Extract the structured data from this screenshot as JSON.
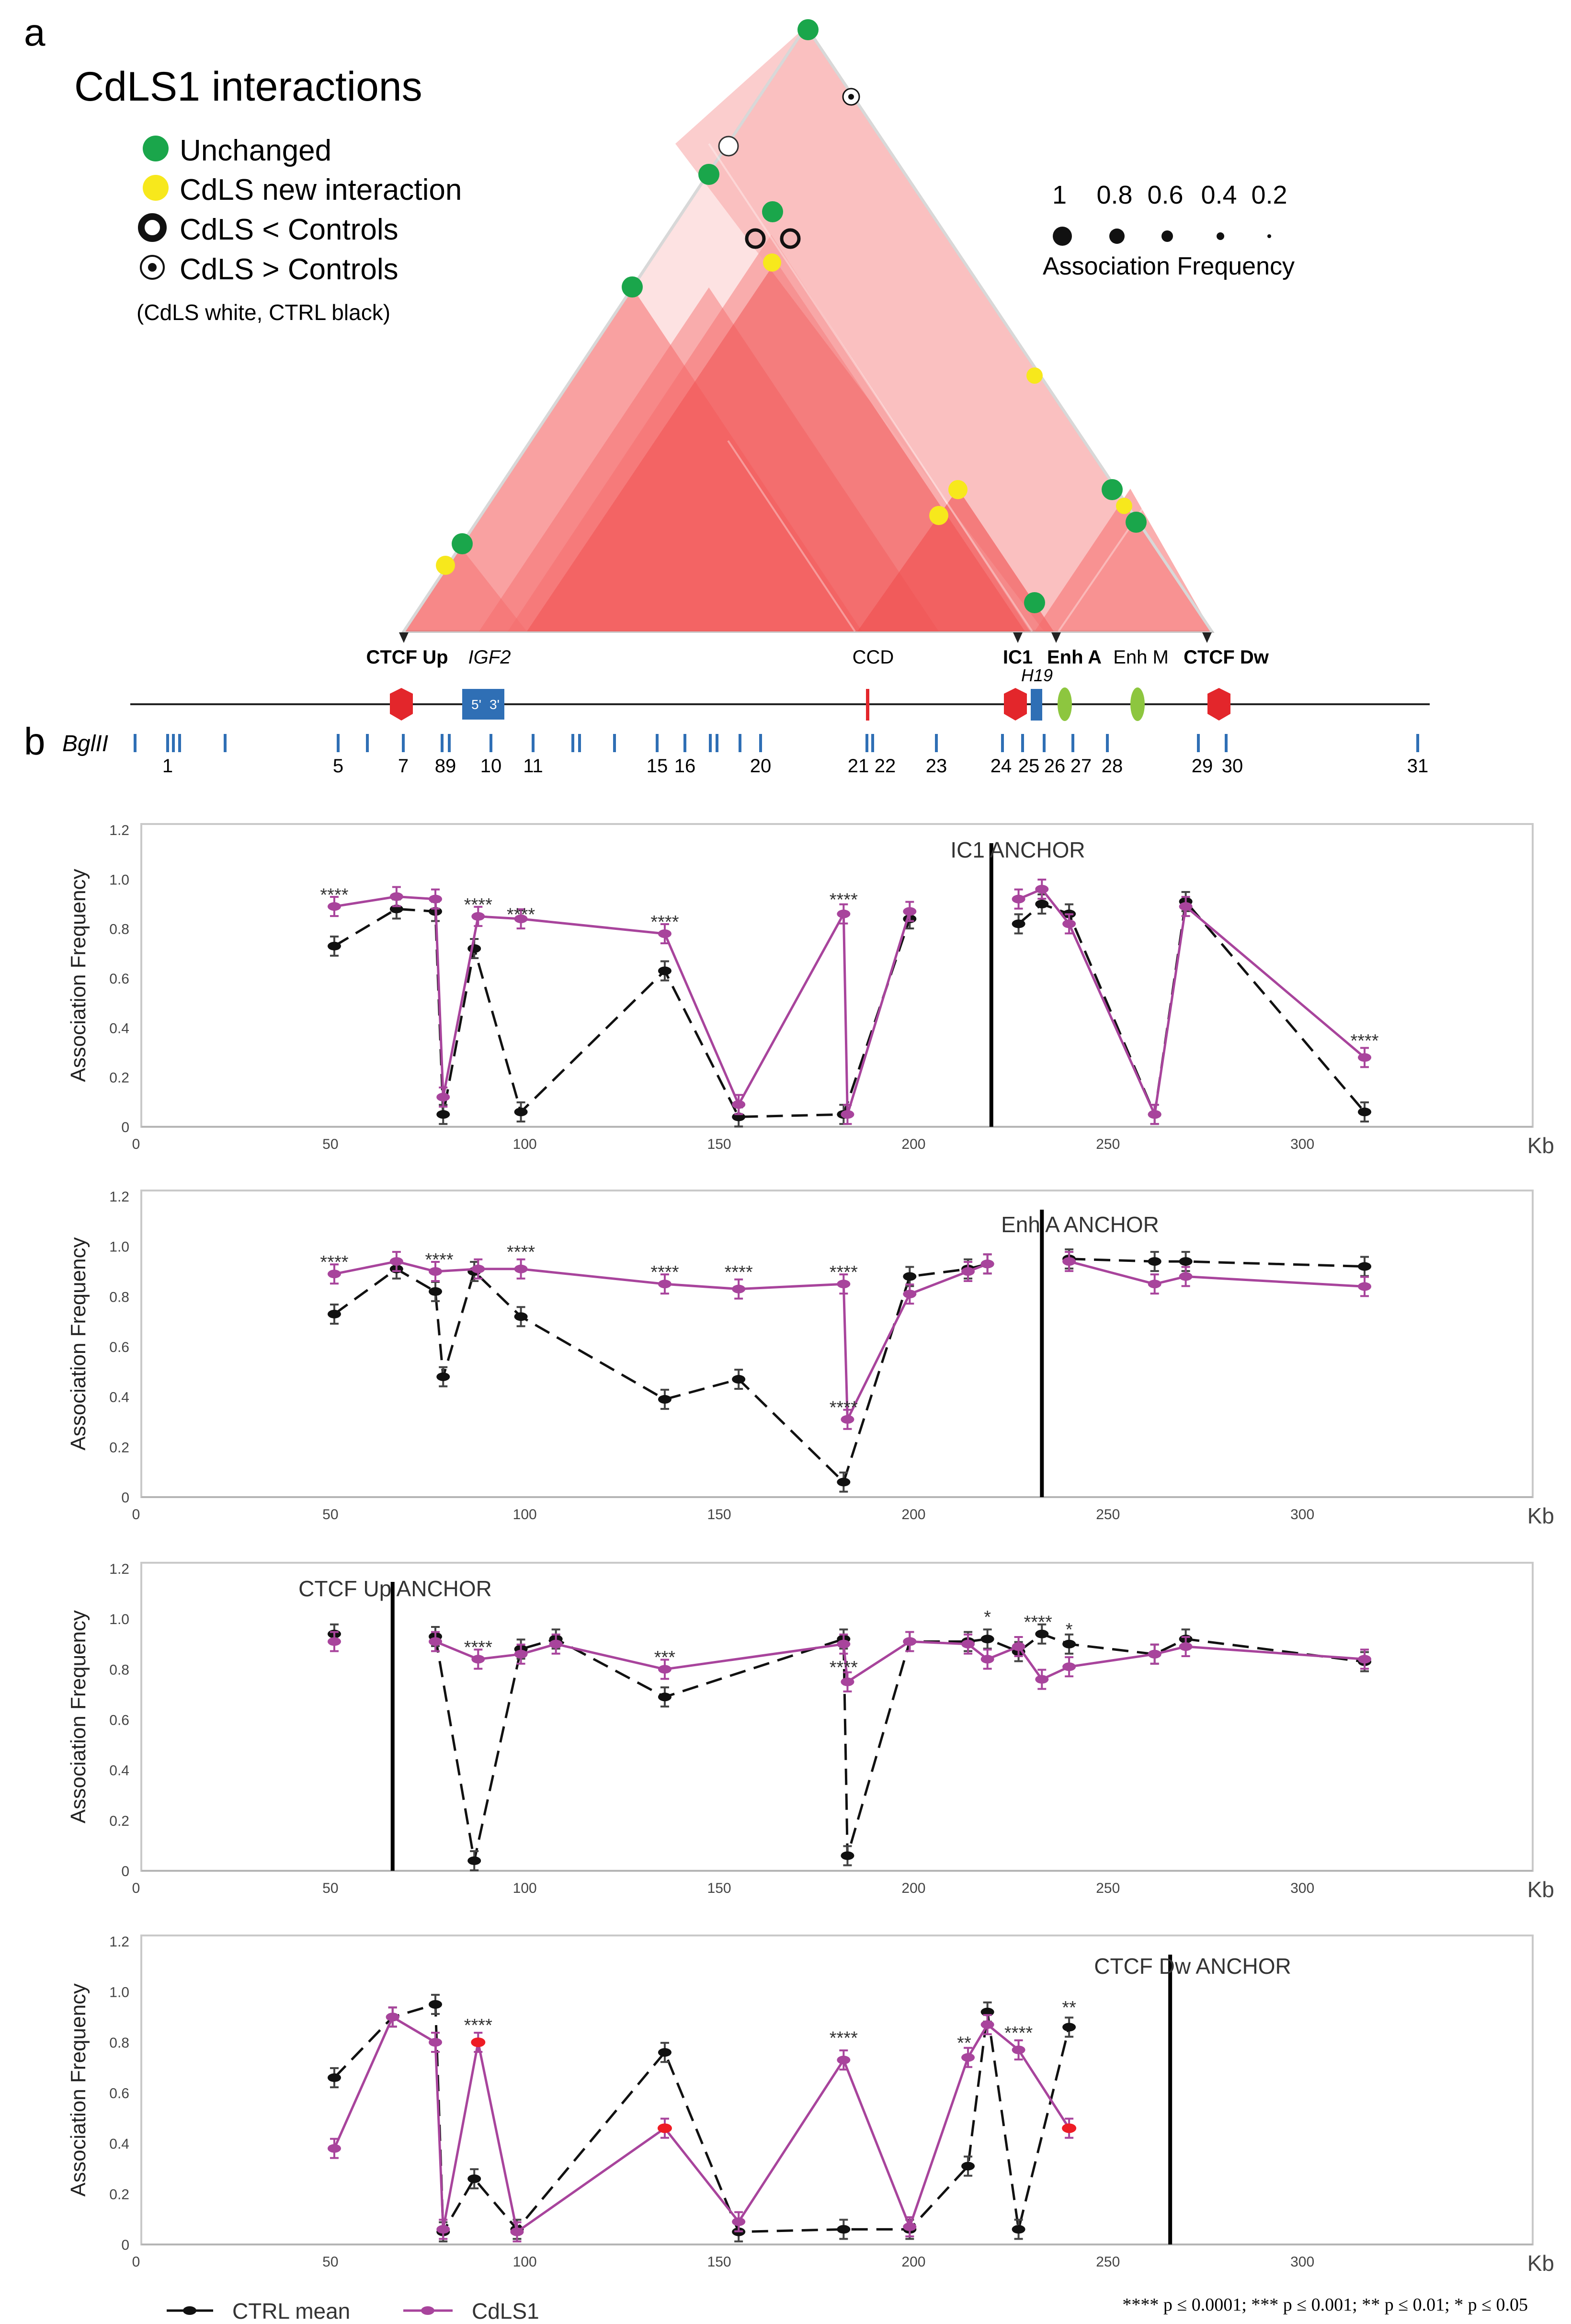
{
  "panel_a": {
    "label": "a",
    "title": "CdLS1 interactions",
    "legend": [
      {
        "kind": "green",
        "label": "Unchanged"
      },
      {
        "kind": "yellow",
        "label": "CdLS new interaction"
      },
      {
        "kind": "ring",
        "label": "CdLS < Controls"
      },
      {
        "kind": "dot-ring",
        "label": "CdLS > Controls"
      }
    ],
    "legend_note": "(CdLS white, CTRL black)",
    "size_scale": {
      "values": [
        "1",
        "0.8",
        "0.6",
        "0.4",
        "0.2"
      ],
      "label": "Association Frequency"
    },
    "colors": {
      "green": "#1aa64b",
      "yellow": "#f7e81c",
      "triangle": "#f04e4e"
    }
  },
  "panel_b": {
    "label": "b",
    "enzyme_label": "BglII",
    "feature_labels": {
      "ctcf_up": "CTCF Up",
      "igf2": "IGF2",
      "ccd": "CCD",
      "ic1": "IC1",
      "enh_a": "Enh A",
      "enh_m": "Enh M",
      "ctcf_dw": "CTCF Dw",
      "h19": "H19",
      "igf2_5": "5'",
      "igf2_3": "3'"
    },
    "fragment_numbers": [
      "1",
      "5",
      "7",
      "89",
      "10",
      "11",
      "15",
      "16",
      "20",
      "21",
      "22",
      "23",
      "24",
      "25",
      "26",
      "27",
      "28",
      "29",
      "30",
      "31"
    ]
  },
  "chart_data": [
    {
      "type": "line",
      "title": "IC1 ANCHOR",
      "anchor_kb": 220,
      "xlabel": "Kb",
      "ylabel": "Association Frequency",
      "xlim": [
        0,
        350
      ],
      "ylim": [
        0,
        1.2
      ],
      "xticks": [
        "0",
        "50",
        "100",
        "150",
        "200",
        "250",
        "300"
      ],
      "yticks": [
        "0",
        "0.2",
        "0.4",
        "0.6",
        "0.8",
        "1.0",
        "1.2"
      ],
      "series": [
        {
          "name": "CTRL mean",
          "style": "dashed",
          "color": "#111111",
          "segments": [
            [
              [
                51,
                0.73
              ],
              [
                67,
                0.88
              ],
              [
                77,
                0.87
              ],
              [
                79,
                0.05
              ],
              [
                87,
                0.72
              ],
              [
                99,
                0.06
              ],
              [
                136,
                0.63
              ],
              [
                155,
                0.04
              ],
              [
                182,
                0.05
              ],
              [
                199,
                0.84
              ]
            ],
            [
              [
                227,
                0.82
              ],
              [
                233,
                0.9
              ],
              [
                240,
                0.86
              ],
              [
                262,
                0.05
              ],
              [
                270,
                0.91
              ],
              [
                316,
                0.06
              ]
            ]
          ]
        },
        {
          "name": "CdLS1",
          "style": "solid",
          "color": "#a8449c",
          "segments": [
            [
              [
                51,
                0.89
              ],
              [
                67,
                0.93
              ],
              [
                77,
                0.92
              ],
              [
                79,
                0.12
              ],
              [
                88,
                0.85
              ],
              [
                99,
                0.84
              ],
              [
                136,
                0.78
              ],
              [
                155,
                0.09
              ],
              [
                182,
                0.86
              ],
              [
                183,
                0.05
              ],
              [
                199,
                0.87
              ]
            ],
            [
              [
                227,
                0.92
              ],
              [
                233,
                0.96
              ],
              [
                240,
                0.82
              ],
              [
                262,
                0.05
              ],
              [
                270,
                0.89
              ],
              [
                316,
                0.28
              ]
            ]
          ]
        }
      ],
      "annotations": [
        {
          "text": "****",
          "x": 51,
          "y": 0.94
        },
        {
          "text": "****",
          "x": 88,
          "y": 0.9
        },
        {
          "text": "****",
          "x": 99,
          "y": 0.86
        },
        {
          "text": "****",
          "x": 136,
          "y": 0.83
        },
        {
          "text": "****",
          "x": 182,
          "y": 0.92
        },
        {
          "text": "****",
          "x": 316,
          "y": 0.35
        }
      ]
    },
    {
      "type": "line",
      "title": "Enh A ANCHOR",
      "anchor_kb": 233,
      "xlabel": "Kb",
      "ylabel": "Association Frequency",
      "xlim": [
        0,
        350
      ],
      "ylim": [
        0,
        1.2
      ],
      "xticks": [
        "0",
        "50",
        "100",
        "150",
        "200",
        "250",
        "300"
      ],
      "yticks": [
        "0",
        "0.2",
        "0.4",
        "0.6",
        "0.8",
        "1.0",
        "1.2"
      ],
      "series": [
        {
          "name": "CTRL mean",
          "style": "dashed",
          "color": "#111111",
          "segments": [
            [
              [
                51,
                0.73
              ],
              [
                67,
                0.91
              ],
              [
                77,
                0.82
              ],
              [
                79,
                0.48
              ],
              [
                87,
                0.9
              ],
              [
                99,
                0.72
              ],
              [
                136,
                0.39
              ],
              [
                155,
                0.47
              ],
              [
                182,
                0.06
              ],
              [
                199,
                0.88
              ],
              [
                214,
                0.91
              ],
              [
                219,
                0.93
              ]
            ],
            [
              [
                240,
                0.95
              ],
              [
                262,
                0.94
              ],
              [
                270,
                0.94
              ],
              [
                316,
                0.92
              ]
            ]
          ]
        },
        {
          "name": "CdLS1",
          "style": "solid",
          "color": "#a8449c",
          "segments": [
            [
              [
                51,
                0.89
              ],
              [
                67,
                0.94
              ],
              [
                77,
                0.9
              ],
              [
                88,
                0.91
              ],
              [
                99,
                0.91
              ],
              [
                136,
                0.85
              ],
              [
                155,
                0.83
              ],
              [
                182,
                0.85
              ],
              [
                183,
                0.31
              ],
              [
                199,
                0.81
              ],
              [
                214,
                0.9
              ],
              [
                219,
                0.93
              ]
            ],
            [
              [
                240,
                0.94
              ],
              [
                262,
                0.85
              ],
              [
                270,
                0.88
              ],
              [
                316,
                0.84
              ]
            ]
          ]
        }
      ],
      "annotations": [
        {
          "text": "****",
          "x": 51,
          "y": 0.94
        },
        {
          "text": "****",
          "x": 78,
          "y": 0.95
        },
        {
          "text": "****",
          "x": 99,
          "y": 0.98
        },
        {
          "text": "****",
          "x": 136,
          "y": 0.9
        },
        {
          "text": "****",
          "x": 155,
          "y": 0.9
        },
        {
          "text": "****",
          "x": 182,
          "y": 0.9
        },
        {
          "text": "****",
          "x": 182,
          "y": 0.36
        }
      ]
    },
    {
      "type": "line",
      "title": "CTCF Up ANCHOR",
      "anchor_kb": 66,
      "xlabel": "Kb",
      "ylabel": "Association Frequency",
      "xlim": [
        0,
        350
      ],
      "ylim": [
        0,
        1.2
      ],
      "xticks": [
        "0",
        "50",
        "100",
        "150",
        "200",
        "250",
        "300"
      ],
      "yticks": [
        "0",
        "0.2",
        "0.4",
        "0.6",
        "0.8",
        "1.0",
        "1.2"
      ],
      "series": [
        {
          "name": "CTRL mean",
          "style": "dashed",
          "color": "#111111",
          "segments": [
            [
              [
                51,
                0.94
              ]
            ],
            [
              [
                77,
                0.93
              ],
              [
                87,
                0.04
              ],
              [
                99,
                0.88
              ],
              [
                108,
                0.92
              ],
              [
                136,
                0.69
              ],
              [
                182,
                0.92
              ],
              [
                183,
                0.06
              ],
              [
                199,
                0.91
              ],
              [
                214,
                0.91
              ],
              [
                219,
                0.92
              ],
              [
                227,
                0.87
              ],
              [
                233,
                0.94
              ],
              [
                240,
                0.9
              ],
              [
                262,
                0.86
              ],
              [
                270,
                0.92
              ],
              [
                316,
                0.83
              ]
            ]
          ]
        },
        {
          "name": "CdLS1",
          "style": "solid",
          "color": "#a8449c",
          "segments": [
            [
              [
                51,
                0.91
              ]
            ],
            [
              [
                77,
                0.91
              ],
              [
                88,
                0.84
              ],
              [
                99,
                0.86
              ],
              [
                108,
                0.9
              ],
              [
                136,
                0.8
              ],
              [
                182,
                0.9
              ],
              [
                183,
                0.75
              ],
              [
                199,
                0.91
              ],
              [
                214,
                0.9
              ],
              [
                219,
                0.84
              ],
              [
                227,
                0.89
              ],
              [
                233,
                0.76
              ],
              [
                240,
                0.81
              ],
              [
                262,
                0.86
              ],
              [
                270,
                0.89
              ],
              [
                316,
                0.84
              ]
            ]
          ]
        }
      ],
      "annotations": [
        {
          "text": "****",
          "x": 88,
          "y": 0.89
        },
        {
          "text": "***",
          "x": 136,
          "y": 0.85
        },
        {
          "text": "****",
          "x": 182,
          "y": 0.81
        },
        {
          "text": "*",
          "x": 219,
          "y": 1.01
        },
        {
          "text": "****",
          "x": 232,
          "y": 0.99
        },
        {
          "text": "*",
          "x": 240,
          "y": 0.96
        }
      ]
    },
    {
      "type": "line",
      "title": "CTCF Dw ANCHOR",
      "anchor_kb": 266,
      "xlabel": "Kb",
      "ylabel": "Association Frequency",
      "xlim": [
        0,
        350
      ],
      "ylim": [
        0,
        1.2
      ],
      "xticks": [
        "0",
        "50",
        "100",
        "150",
        "200",
        "250",
        "300"
      ],
      "yticks": [
        "0",
        "0.2",
        "0.4",
        "0.6",
        "0.8",
        "1.0",
        "1.2"
      ],
      "series": [
        {
          "name": "CTRL mean",
          "style": "dashed",
          "color": "#111111",
          "segments": [
            [
              [
                51,
                0.66
              ],
              [
                66,
                0.9
              ],
              [
                77,
                0.95
              ],
              [
                79,
                0.05
              ],
              [
                87,
                0.26
              ],
              [
                98,
                0.06
              ],
              [
                136,
                0.76
              ],
              [
                155,
                0.05
              ],
              [
                182,
                0.06
              ],
              [
                199,
                0.06
              ],
              [
                214,
                0.31
              ],
              [
                219,
                0.92
              ],
              [
                227,
                0.06
              ],
              [
                240,
                0.86
              ]
            ]
          ]
        },
        {
          "name": "CdLS1",
          "style": "solid",
          "color": "#a8449c",
          "segments": [
            [
              [
                51,
                0.38
              ],
              [
                66,
                0.9
              ],
              [
                77,
                0.8
              ],
              [
                79,
                0.06
              ],
              [
                88,
                0.8
              ],
              [
                98,
                0.05
              ],
              [
                136,
                0.46
              ],
              [
                155,
                0.09
              ],
              [
                182,
                0.73
              ],
              [
                199,
                0.07
              ],
              [
                214,
                0.74
              ],
              [
                219,
                0.87
              ],
              [
                227,
                0.77
              ],
              [
                240,
                0.46
              ]
            ]
          ]
        }
      ],
      "red_points": [
        [
          88,
          0.8
        ],
        [
          136,
          0.46
        ],
        [
          240,
          0.46
        ]
      ],
      "annotations": [
        {
          "text": "****",
          "x": 88,
          "y": 0.87
        },
        {
          "text": "****",
          "x": 182,
          "y": 0.82
        },
        {
          "text": "**",
          "x": 213,
          "y": 0.8
        },
        {
          "text": "****",
          "x": 227,
          "y": 0.84
        },
        {
          "text": "**",
          "x": 240,
          "y": 0.94
        }
      ]
    }
  ],
  "legend_bottom": {
    "ctrl": "CTRL mean",
    "cdls": "CdLS1",
    "pvalues": "**** p ≤ 0.0001; *** p ≤ 0.001; ** p ≤ 0.01; * p ≤ 0.05"
  }
}
